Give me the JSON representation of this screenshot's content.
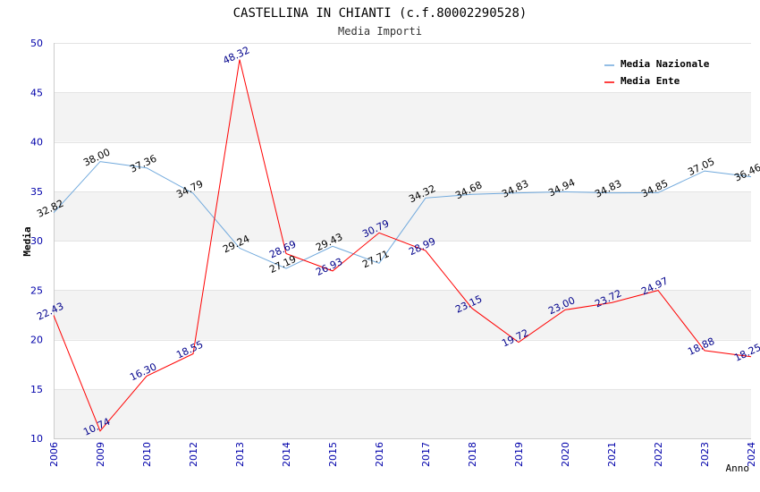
{
  "chart_data": {
    "type": "line",
    "title": "CASTELLINA IN CHIANTI (c.f.80002290528)",
    "subtitle": "Media Importi",
    "xlabel": "Anno",
    "ylabel": "Media",
    "ylim": [
      10,
      50
    ],
    "yticks": [
      10,
      15,
      20,
      25,
      30,
      35,
      40,
      45,
      50
    ],
    "categories": [
      "2006",
      "2009",
      "2010",
      "2012",
      "2013",
      "2014",
      "2015",
      "2016",
      "2017",
      "2018",
      "2019",
      "2020",
      "2021",
      "2022",
      "2023",
      "2024"
    ],
    "legend_position": "top-right",
    "series": [
      {
        "name": "Media Nazionale",
        "color": "#6fa8dc",
        "values": [
          32.82,
          38.0,
          37.36,
          34.79,
          29.24,
          27.19,
          29.43,
          27.71,
          34.32,
          34.68,
          34.83,
          34.94,
          34.83,
          34.85,
          37.05,
          36.46
        ],
        "labels": [
          "32.82",
          "38.00",
          "37.36",
          "34.79",
          "29.24",
          "27.19",
          "29.43",
          "27.71",
          "34.32",
          "34.68",
          "34.83",
          "34.94",
          "34.83",
          "34.85",
          "37.05",
          "36.46"
        ]
      },
      {
        "name": "Media Ente",
        "color": "#ff0000",
        "values": [
          22.43,
          10.74,
          16.3,
          18.55,
          48.32,
          28.69,
          26.93,
          30.79,
          28.99,
          23.15,
          19.72,
          23.0,
          23.72,
          24.97,
          18.88,
          18.25
        ],
        "labels": [
          "22.43",
          "10.74",
          "16.30",
          "18.55",
          "48.32",
          "28.69",
          "26.93",
          "30.79",
          "28.99",
          "23.15",
          "19.72",
          "23.00",
          "23.72",
          "24.97",
          "18.88",
          "18.25"
        ]
      }
    ]
  }
}
